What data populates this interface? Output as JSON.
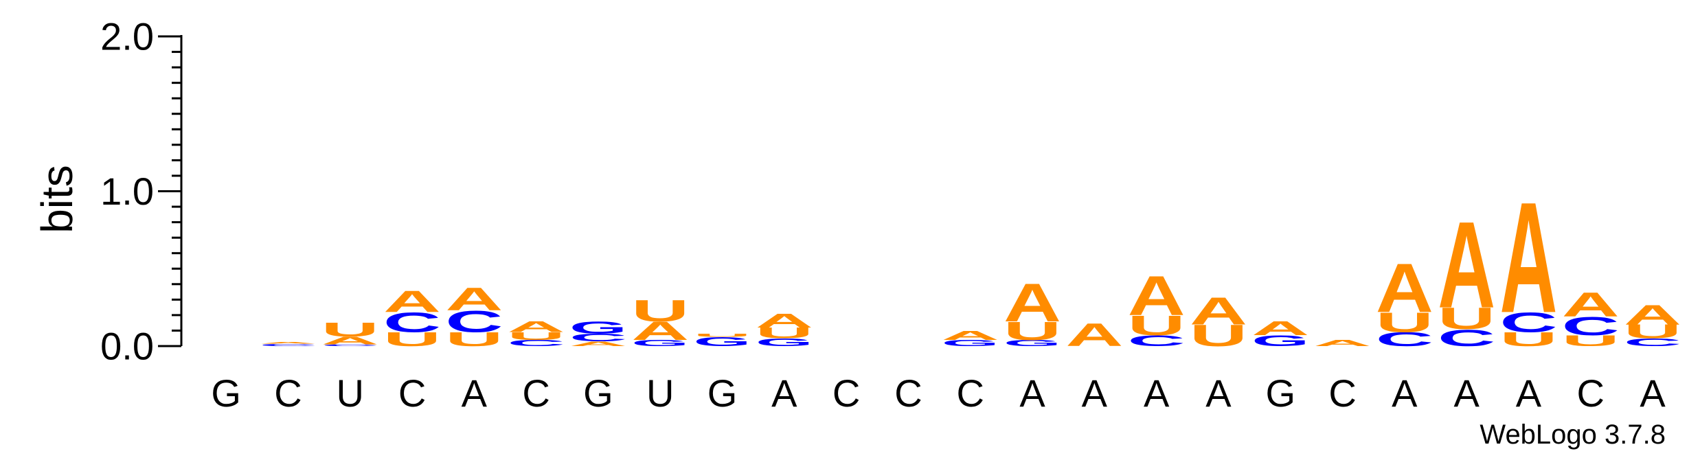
{
  "colors": {
    "A": "#FF8C00",
    "U": "#FF8C00",
    "C": "#0000FF",
    "G": "#0000FF"
  },
  "chart_data": {
    "type": "sequence-logo",
    "ylabel": "bits",
    "ylim": [
      0,
      2.0
    ],
    "yticks": [
      "0.0",
      "1.0",
      "2.0"
    ],
    "xlabels": [
      "G",
      "C",
      "U",
      "C",
      "A",
      "C",
      "G",
      "U",
      "G",
      "A",
      "C",
      "C",
      "C",
      "A",
      "A",
      "A",
      "A",
      "G",
      "C",
      "A",
      "A",
      "A",
      "C",
      "A"
    ],
    "credit": "WebLogo 3.7.8",
    "positions": [
      [],
      [
        [
          "C",
          0.015
        ],
        [
          "A",
          0.01
        ]
      ],
      [
        [
          "C",
          0.012
        ],
        [
          "A",
          0.05
        ],
        [
          "U",
          0.09
        ]
      ],
      [
        [
          "U",
          0.09
        ],
        [
          "C",
          0.13
        ],
        [
          "A",
          0.14
        ]
      ],
      [
        [
          "U",
          0.09
        ],
        [
          "C",
          0.14
        ],
        [
          "A",
          0.15
        ]
      ],
      [
        [
          "C",
          0.04
        ],
        [
          "U",
          0.05
        ],
        [
          "A",
          0.07
        ]
      ],
      [
        [
          "A",
          0.03
        ],
        [
          "C",
          0.05
        ],
        [
          "G",
          0.08
        ]
      ],
      [
        [
          "G",
          0.04
        ],
        [
          "A",
          0.12
        ],
        [
          "U",
          0.14
        ]
      ],
      [
        [
          "G",
          0.06
        ],
        [
          "U",
          0.02
        ]
      ],
      [
        [
          "G",
          0.05
        ],
        [
          "U",
          0.07
        ],
        [
          "A",
          0.09
        ]
      ],
      [],
      [],
      [
        [
          "G",
          0.04
        ],
        [
          "A",
          0.06
        ]
      ],
      [
        [
          "G",
          0.04
        ],
        [
          "U",
          0.12
        ],
        [
          "A",
          0.25
        ]
      ],
      [
        [
          "A",
          0.15
        ]
      ],
      [
        [
          "C",
          0.07
        ],
        [
          "U",
          0.13
        ],
        [
          "A",
          0.26
        ]
      ],
      [
        [
          "U",
          0.14
        ],
        [
          "A",
          0.18
        ]
      ],
      [
        [
          "G",
          0.07
        ],
        [
          "A",
          0.09
        ]
      ],
      [
        [
          "A",
          0.04
        ]
      ],
      [
        [
          "C",
          0.09
        ],
        [
          "U",
          0.13
        ],
        [
          "A",
          0.32
        ]
      ],
      [
        [
          "C",
          0.11
        ],
        [
          "U",
          0.14
        ],
        [
          "A",
          0.57
        ]
      ],
      [
        [
          "U",
          0.09
        ],
        [
          "C",
          0.13
        ],
        [
          "A",
          0.73
        ]
      ],
      [
        [
          "U",
          0.07
        ],
        [
          "C",
          0.12
        ],
        [
          "A",
          0.16
        ]
      ],
      [
        [
          "C",
          0.05
        ],
        [
          "U",
          0.09
        ],
        [
          "A",
          0.13
        ]
      ]
    ]
  }
}
